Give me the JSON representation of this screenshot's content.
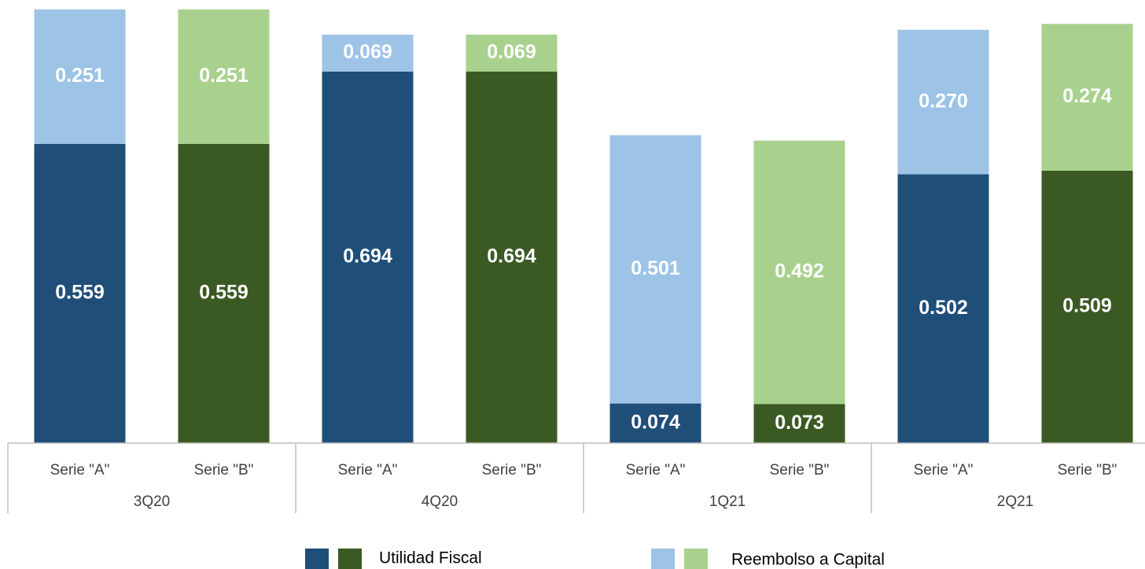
{
  "chart_data": {
    "type": "stacked-bar",
    "categories": [
      "Serie \"A\"",
      "Serie \"B\"",
      "Serie \"A\"",
      "Serie \"B\"",
      "Serie \"A\"",
      "Serie \"B\"",
      "Serie \"A\"",
      "Serie \"B\""
    ],
    "groups": [
      "3Q20",
      "4Q20",
      "1Q21",
      "2Q21"
    ],
    "series": [
      {
        "name": "Utilidad Fiscal",
        "colors": [
          "#1f4e79",
          "#3b5a23"
        ],
        "values": [
          0.559,
          0.559,
          0.694,
          0.694,
          0.074,
          0.073,
          0.502,
          0.509
        ],
        "value_labels": [
          "0.559",
          "0.559",
          "0.694",
          "0.694",
          "0.074",
          "0.073",
          "0.502",
          "0.509"
        ]
      },
      {
        "name": "Reembolso a Capital",
        "colors": [
          "#9dc3e6",
          "#a9d18e"
        ],
        "values": [
          0.251,
          0.251,
          0.069,
          0.069,
          0.501,
          0.492,
          0.27,
          0.274
        ],
        "value_labels": [
          "0.251",
          "0.251",
          "0.069",
          "0.069",
          "0.501",
          "0.492",
          "0.270",
          "0.274"
        ]
      }
    ],
    "ylim": [
      0,
      0.81
    ]
  }
}
